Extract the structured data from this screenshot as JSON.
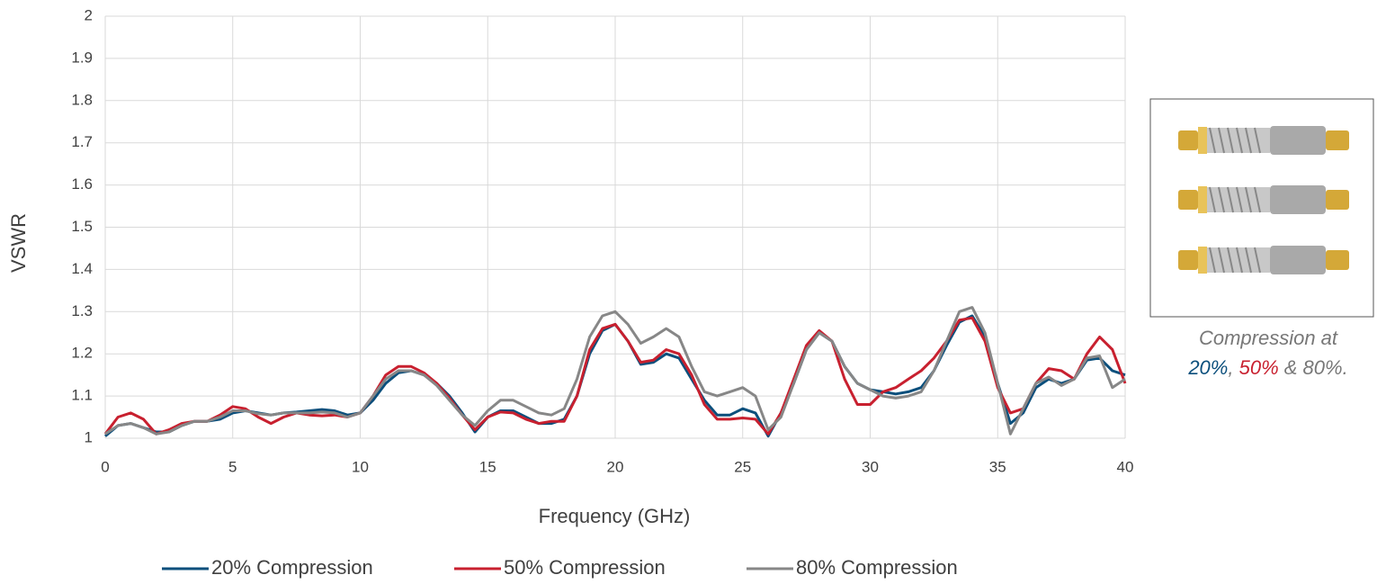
{
  "chart_data": {
    "type": "line",
    "xlabel": "Frequency (GHz)",
    "ylabel": "VSWR",
    "xlim": [
      0,
      40
    ],
    "xticks": [
      0,
      5,
      10,
      15,
      20,
      25,
      30,
      35,
      40
    ],
    "ylim": [
      1,
      2
    ],
    "yticks": [
      1,
      1.1,
      1.2,
      1.3,
      1.4,
      1.5,
      1.6,
      1.7,
      1.8,
      1.9,
      2
    ],
    "grid": true,
    "legend": "bottom",
    "x": [
      0,
      0.5,
      1,
      1.5,
      2,
      2.5,
      3,
      3.5,
      4,
      4.5,
      5,
      5.5,
      6,
      6.5,
      7,
      7.5,
      8,
      8.5,
      9,
      9.5,
      10,
      10.5,
      11,
      11.5,
      12,
      12.5,
      13,
      13.5,
      14,
      14.5,
      15,
      15.5,
      16,
      16.5,
      17,
      17.5,
      18,
      18.5,
      19,
      19.5,
      20,
      20.5,
      21,
      21.5,
      22,
      22.5,
      23,
      23.5,
      24,
      24.5,
      25,
      25.5,
      26,
      26.5,
      27,
      27.5,
      28,
      28.5,
      29,
      29.5,
      30,
      30.5,
      31,
      31.5,
      32,
      32.5,
      33,
      33.5,
      34,
      34.5,
      35,
      35.5,
      36,
      36.5,
      37,
      37.5,
      38,
      38.5,
      39,
      39.5,
      40
    ],
    "series": [
      {
        "name": "20% Compression",
        "color": "#0b4f7c",
        "values": [
          1.005,
          1.03,
          1.035,
          1.025,
          1.015,
          1.015,
          1.03,
          1.04,
          1.04,
          1.045,
          1.06,
          1.065,
          1.06,
          1.055,
          1.06,
          1.062,
          1.065,
          1.068,
          1.065,
          1.055,
          1.06,
          1.09,
          1.13,
          1.155,
          1.16,
          1.15,
          1.13,
          1.1,
          1.06,
          1.015,
          1.05,
          1.065,
          1.065,
          1.05,
          1.035,
          1.035,
          1.045,
          1.1,
          1.2,
          1.255,
          1.27,
          1.23,
          1.175,
          1.18,
          1.2,
          1.19,
          1.14,
          1.09,
          1.055,
          1.055,
          1.07,
          1.06,
          1.005,
          1.06,
          1.13,
          1.21,
          1.25,
          1.23,
          1.17,
          1.13,
          1.115,
          1.11,
          1.105,
          1.11,
          1.12,
          1.16,
          1.22,
          1.275,
          1.29,
          1.24,
          1.13,
          1.035,
          1.06,
          1.12,
          1.14,
          1.13,
          1.14,
          1.185,
          1.19,
          1.16,
          1.15
        ]
      },
      {
        "name": "50% Compression",
        "color": "#c8202f",
        "values": [
          1.01,
          1.05,
          1.06,
          1.045,
          1.01,
          1.02,
          1.035,
          1.04,
          1.04,
          1.055,
          1.075,
          1.07,
          1.05,
          1.035,
          1.05,
          1.06,
          1.055,
          1.053,
          1.055,
          1.05,
          1.06,
          1.1,
          1.15,
          1.17,
          1.17,
          1.155,
          1.13,
          1.095,
          1.055,
          1.02,
          1.05,
          1.062,
          1.06,
          1.045,
          1.035,
          1.04,
          1.04,
          1.1,
          1.21,
          1.26,
          1.27,
          1.23,
          1.18,
          1.185,
          1.21,
          1.2,
          1.15,
          1.08,
          1.045,
          1.045,
          1.048,
          1.045,
          1.01,
          1.06,
          1.14,
          1.22,
          1.255,
          1.23,
          1.14,
          1.08,
          1.08,
          1.11,
          1.12,
          1.14,
          1.16,
          1.19,
          1.23,
          1.28,
          1.285,
          1.23,
          1.12,
          1.06,
          1.07,
          1.13,
          1.165,
          1.16,
          1.14,
          1.2,
          1.24,
          1.21,
          1.13
        ]
      },
      {
        "name": "80% Compression",
        "color": "#878787",
        "values": [
          1.01,
          1.03,
          1.035,
          1.025,
          1.01,
          1.015,
          1.03,
          1.04,
          1.04,
          1.05,
          1.065,
          1.065,
          1.058,
          1.055,
          1.06,
          1.06,
          1.06,
          1.062,
          1.06,
          1.05,
          1.06,
          1.1,
          1.14,
          1.16,
          1.16,
          1.15,
          1.125,
          1.09,
          1.055,
          1.03,
          1.065,
          1.09,
          1.09,
          1.075,
          1.06,
          1.055,
          1.07,
          1.14,
          1.24,
          1.29,
          1.3,
          1.27,
          1.225,
          1.24,
          1.26,
          1.24,
          1.17,
          1.11,
          1.1,
          1.11,
          1.12,
          1.1,
          1.02,
          1.05,
          1.13,
          1.21,
          1.25,
          1.23,
          1.17,
          1.13,
          1.115,
          1.1,
          1.095,
          1.1,
          1.11,
          1.16,
          1.23,
          1.3,
          1.31,
          1.25,
          1.13,
          1.01,
          1.07,
          1.13,
          1.145,
          1.125,
          1.14,
          1.19,
          1.195,
          1.12,
          1.14
        ]
      }
    ],
    "annotation": {
      "line1": "Compression at",
      "parts": [
        "20%",
        ", ",
        "50%",
        " & 80%."
      ]
    }
  }
}
